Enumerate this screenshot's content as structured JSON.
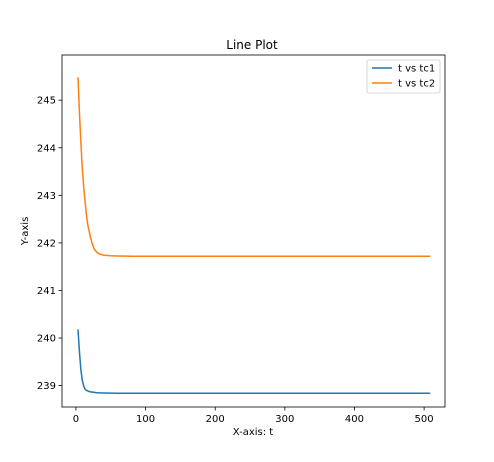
{
  "chart_data": {
    "type": "line",
    "title": "Line Plot",
    "xlabel": "X-axis: t",
    "ylabel": "Y-axis",
    "xlim": [
      -20,
      530
    ],
    "ylim": [
      238.55,
      245.95
    ],
    "xticks": [
      0,
      100,
      200,
      300,
      400,
      500
    ],
    "yticks": [
      239,
      240,
      241,
      242,
      243,
      244,
      245
    ],
    "grid": false,
    "legend_position": "upper right",
    "series": [
      {
        "name": "t vs tc1",
        "color": "#1f77b4",
        "x": [
          3,
          5,
          7,
          9,
          11,
          13,
          15,
          20,
          25,
          30,
          40,
          50,
          60,
          80,
          100,
          150,
          200,
          300,
          400,
          508
        ],
        "y": [
          240.17,
          239.72,
          239.35,
          239.12,
          239.0,
          238.93,
          238.9,
          238.87,
          238.86,
          238.85,
          238.845,
          238.842,
          238.84,
          238.84,
          238.84,
          238.84,
          238.84,
          238.84,
          238.84,
          238.84
        ]
      },
      {
        "name": "t vs tc2",
        "color": "#ff7f0e",
        "x": [
          3,
          5,
          7,
          9,
          11,
          13,
          15,
          17,
          20,
          23,
          26,
          30,
          35,
          40,
          50,
          60,
          80,
          100,
          150,
          200,
          300,
          400,
          508
        ],
        "y": [
          245.47,
          244.75,
          244.15,
          243.6,
          243.2,
          242.9,
          242.6,
          242.38,
          242.18,
          242.0,
          241.88,
          241.8,
          241.76,
          241.74,
          241.73,
          241.725,
          241.72,
          241.72,
          241.72,
          241.72,
          241.72,
          241.72,
          241.72
        ]
      }
    ]
  }
}
